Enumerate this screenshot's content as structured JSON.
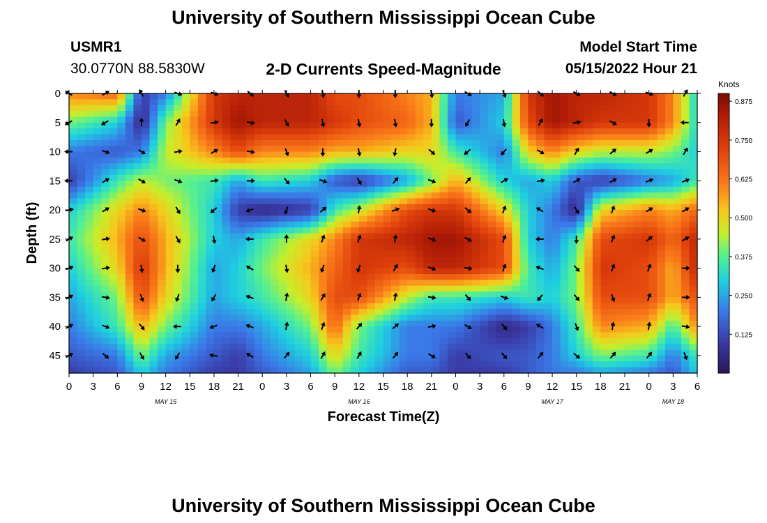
{
  "header": {
    "title": "University of Southern Mississippi Ocean Cube",
    "station": "USMR1",
    "coords": "30.0770N  88.5830W",
    "subtitle": "2-D Currents Speed-Magnitude",
    "model_start_label": "Model Start Time",
    "model_start_value": "05/15/2022 Hour 21"
  },
  "footer": {
    "title": "University of Southern Mississippi Ocean Cube"
  },
  "chart_data": {
    "type": "heatmap",
    "title": "2-D Currents Speed-Magnitude",
    "xlabel": "Forecast Time(Z)",
    "ylabel": "Depth (ft)",
    "x_ticks": [
      "0",
      "3",
      "6",
      "9",
      "12",
      "15",
      "18",
      "21",
      "0",
      "3",
      "6",
      "9",
      "12",
      "15",
      "18",
      "21",
      "0",
      "3",
      "6",
      "9",
      "12",
      "15",
      "18",
      "21",
      "0",
      "3",
      "6"
    ],
    "x_range_hours": [
      0,
      78
    ],
    "date_labels": [
      {
        "text": "MAY 15",
        "hour": 12
      },
      {
        "text": "MAY 16",
        "hour": 36
      },
      {
        "text": "MAY 17",
        "hour": 60
      },
      {
        "text": "MAY 18",
        "hour": 75
      }
    ],
    "y_ticks": [
      0,
      5,
      10,
      15,
      20,
      25,
      30,
      35,
      40,
      45
    ],
    "y_range": [
      0,
      48
    ],
    "colorbar": {
      "label": "Knots",
      "ticks": [
        "0.875",
        "0.750",
        "0.625",
        "0.500",
        "0.375",
        "0.250",
        "0.125"
      ],
      "range": [
        0,
        0.9
      ]
    },
    "speed_anchors_knots": {
      "hours": [
        0,
        6,
        9,
        12,
        18,
        21,
        24,
        30,
        33,
        36,
        42,
        45,
        48,
        54,
        57,
        60,
        63,
        66,
        72,
        75,
        78
      ],
      "depths": [
        0,
        5,
        10,
        15,
        20,
        25,
        30,
        35,
        40,
        45,
        48
      ],
      "rows": [
        [
          0.6,
          0.65,
          0.1,
          0.2,
          0.75,
          0.8,
          0.8,
          0.8,
          0.7,
          0.7,
          0.6,
          0.55,
          0.2,
          0.25,
          0.75,
          0.85,
          0.8,
          0.8,
          0.75,
          0.6,
          0.3
        ],
        [
          0.4,
          0.3,
          0.05,
          0.4,
          0.75,
          0.85,
          0.8,
          0.8,
          0.75,
          0.7,
          0.65,
          0.55,
          0.15,
          0.3,
          0.7,
          0.85,
          0.8,
          0.75,
          0.75,
          0.6,
          0.3
        ],
        [
          0.2,
          0.15,
          0.2,
          0.45,
          0.6,
          0.7,
          0.6,
          0.6,
          0.55,
          0.55,
          0.5,
          0.5,
          0.35,
          0.2,
          0.5,
          0.6,
          0.5,
          0.45,
          0.45,
          0.4,
          0.3
        ],
        [
          0.1,
          0.35,
          0.45,
          0.4,
          0.35,
          0.25,
          0.35,
          0.3,
          0.15,
          0.1,
          0.25,
          0.4,
          0.55,
          0.3,
          0.25,
          0.3,
          0.15,
          0.1,
          0.2,
          0.25,
          0.35
        ],
        [
          0.3,
          0.5,
          0.6,
          0.5,
          0.3,
          0.1,
          0.05,
          0.1,
          0.35,
          0.45,
          0.7,
          0.75,
          0.75,
          0.5,
          0.3,
          0.2,
          0.05,
          0.5,
          0.6,
          0.55,
          0.65
        ],
        [
          0.35,
          0.55,
          0.7,
          0.55,
          0.3,
          0.25,
          0.35,
          0.5,
          0.6,
          0.75,
          0.8,
          0.85,
          0.85,
          0.7,
          0.3,
          0.2,
          0.35,
          0.7,
          0.75,
          0.65,
          0.8
        ],
        [
          0.3,
          0.5,
          0.75,
          0.55,
          0.25,
          0.3,
          0.4,
          0.55,
          0.65,
          0.75,
          0.7,
          0.8,
          0.8,
          0.7,
          0.35,
          0.25,
          0.4,
          0.75,
          0.7,
          0.55,
          0.8
        ],
        [
          0.25,
          0.4,
          0.7,
          0.5,
          0.25,
          0.3,
          0.35,
          0.5,
          0.7,
          0.7,
          0.45,
          0.35,
          0.35,
          0.3,
          0.35,
          0.3,
          0.4,
          0.7,
          0.7,
          0.55,
          0.7
        ],
        [
          0.2,
          0.35,
          0.55,
          0.4,
          0.2,
          0.2,
          0.25,
          0.4,
          0.65,
          0.4,
          0.2,
          0.2,
          0.2,
          0.05,
          0.1,
          0.2,
          0.35,
          0.6,
          0.55,
          0.35,
          0.6
        ],
        [
          0.15,
          0.2,
          0.4,
          0.25,
          0.15,
          0.1,
          0.2,
          0.3,
          0.5,
          0.35,
          0.2,
          0.2,
          0.1,
          0.15,
          0.15,
          0.2,
          0.3,
          0.4,
          0.35,
          0.2,
          0.35
        ],
        [
          0.1,
          0.15,
          0.3,
          0.2,
          0.1,
          0.1,
          0.15,
          0.25,
          0.4,
          0.3,
          0.15,
          0.15,
          0.1,
          0.1,
          0.15,
          0.2,
          0.2,
          0.25,
          0.2,
          0.15,
          0.3
        ]
      ]
    },
    "arrows": {
      "hours": [
        0,
        4.5,
        9,
        13.5,
        18,
        22.5,
        27,
        31.5,
        36,
        40.5,
        45,
        49.5,
        54,
        58.5,
        63,
        67.5,
        72,
        76.5
      ],
      "depths": [
        0,
        5,
        10,
        15,
        20,
        25,
        30,
        35,
        40,
        45
      ],
      "note": "direction angles (degrees, 0 = up, clockwise) per depth row",
      "angles": [
        [
          300,
          60,
          330,
          110,
          110,
          130,
          150,
          170,
          180,
          180,
          170,
          120,
          160,
          130,
          120,
          120,
          110,
          30
        ],
        [
          240,
          240,
          0,
          30,
          80,
          100,
          150,
          170,
          170,
          170,
          180,
          210,
          170,
          30,
          80,
          120,
          180,
          270
        ],
        [
          270,
          110,
          120,
          80,
          60,
          100,
          160,
          180,
          170,
          190,
          130,
          230,
          220,
          120,
          30,
          50,
          60,
          30
        ],
        [
          270,
          60,
          120,
          110,
          80,
          90,
          140,
          110,
          150,
          40,
          110,
          40,
          60,
          80,
          60,
          60,
          70,
          70
        ],
        [
          80,
          60,
          110,
          150,
          230,
          250,
          200,
          50,
          10,
          70,
          110,
          130,
          20,
          300,
          150,
          20,
          60,
          60
        ],
        [
          60,
          80,
          120,
          150,
          170,
          270,
          0,
          20,
          20,
          10,
          110,
          120,
          20,
          270,
          180,
          20,
          50,
          60
        ],
        [
          70,
          80,
          170,
          180,
          200,
          300,
          170,
          200,
          200,
          30,
          110,
          100,
          20,
          290,
          140,
          20,
          20,
          90
        ],
        [
          60,
          100,
          160,
          200,
          210,
          290,
          10,
          30,
          20,
          10,
          100,
          140,
          110,
          220,
          140,
          160,
          20,
          90
        ],
        [
          60,
          110,
          140,
          270,
          250,
          290,
          10,
          20,
          40,
          50,
          80,
          120,
          140,
          300,
          160,
          10,
          10,
          100
        ],
        [
          60,
          130,
          150,
          210,
          280,
          300,
          40,
          30,
          30,
          40,
          120,
          140,
          140,
          40,
          130,
          40,
          40,
          160
        ]
      ]
    }
  }
}
